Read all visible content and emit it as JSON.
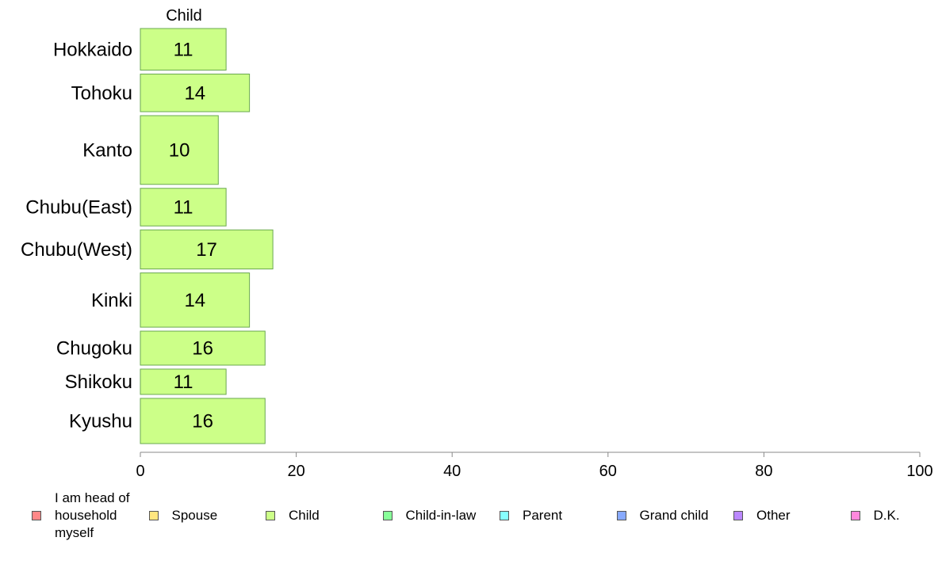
{
  "chart_data": {
    "type": "bar",
    "orientation": "horizontal",
    "title": "Child",
    "categories": [
      "Hokkaido",
      "Tohoku",
      "Kanto",
      "Chubu(East)",
      "Chubu(West)",
      "Kinki",
      "Chugoku",
      "Shikoku",
      "Kyushu"
    ],
    "series": [
      {
        "name": "Child",
        "values": [
          11,
          14,
          10,
          11,
          17,
          14,
          16,
          11,
          16
        ]
      }
    ],
    "value_labels": [
      "11",
      "14",
      "10",
      "11",
      "17",
      "14",
      "16",
      "11",
      "16"
    ],
    "relative_widths": [
      1.15,
      1.04,
      1.9,
      1.04,
      1.08,
      1.5,
      0.94,
      0.7,
      1.25
    ],
    "xlim": [
      0,
      100
    ],
    "xticks": [
      0,
      20,
      40,
      60,
      80,
      100
    ],
    "xtick_labels": [
      "0",
      "20",
      "40",
      "60",
      "80",
      "100"
    ],
    "grid": false,
    "legend_position": "bottom",
    "bar_color": "#ccff88",
    "bar_stroke": "#6aa84f"
  },
  "legend": [
    {
      "label": "I am head of\nhousehold\nmyself",
      "color": "#ff8888"
    },
    {
      "label": "Spouse",
      "color": "#ffe680"
    },
    {
      "label": "Child",
      "color": "#ccff88"
    },
    {
      "label": "Child-in-law",
      "color": "#88ff99"
    },
    {
      "label": "Parent",
      "color": "#88ffff"
    },
    {
      "label": "Grand child",
      "color": "#88aaff"
    },
    {
      "label": "Other",
      "color": "#bb88ff"
    },
    {
      "label": "D.K.",
      "color": "#ff88dd"
    }
  ]
}
